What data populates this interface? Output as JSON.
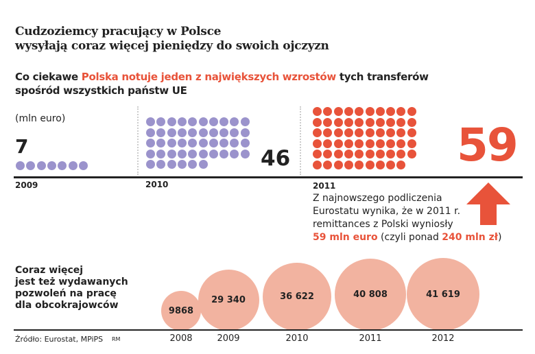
{
  "title_lines": [
    "Cudzoziemcy pracujący w Polsce",
    "wysyłają coraz więcej pieniędzy do swoich ojczyzn"
  ],
  "subtitle": {
    "pre": "Co ciekawe ",
    "highlight": "Polska notuje jeden z największych wzrostów",
    "post": " tych transferów",
    "line2": "spośród wszystkich państw UE"
  },
  "unit": "(mln euro)",
  "colors": {
    "y2009": "#9b93cc",
    "y2010": "#9b93cc",
    "y2011": "#e8533a",
    "bubbles": "#f2b3a0",
    "accent": "#e8533a"
  },
  "chart_data": [
    {
      "type": "pictogram",
      "unit": "mln euro",
      "categories": [
        "2009",
        "2010",
        "2011"
      ],
      "values": [
        7,
        46,
        59
      ],
      "value_labels": [
        "7",
        "46",
        "59"
      ]
    },
    {
      "type": "bubble",
      "title": "Coraz więcej jest też wydawanych pozwoleń na pracę dla obcokrajowców",
      "categories": [
        "2008",
        "2009",
        "2010",
        "2011",
        "2012"
      ],
      "values": [
        9868,
        29340,
        36622,
        40808,
        41619
      ],
      "value_labels": [
        "9868",
        "29 340",
        "36 622",
        "40 808",
        "41 619"
      ]
    }
  ],
  "note": {
    "l1": "Z najnowszego podliczenia",
    "l2": "Eurostatu wynika, że w 2011 r.",
    "l3": "remittances z Polski wyniosły",
    "v1": "59 mln euro",
    "mid": " (czyli ponad ",
    "v2": "240 mln zł",
    "end": ")"
  },
  "arrow_icon": "arrow-up-icon",
  "bubble_title_lines": [
    "Coraz więcej",
    "jest też wydawanych",
    "pozwoleń na pracę",
    "dla obcokrajowców"
  ],
  "source": "Źródło: Eurostat, MPiPS",
  "author": "RM"
}
